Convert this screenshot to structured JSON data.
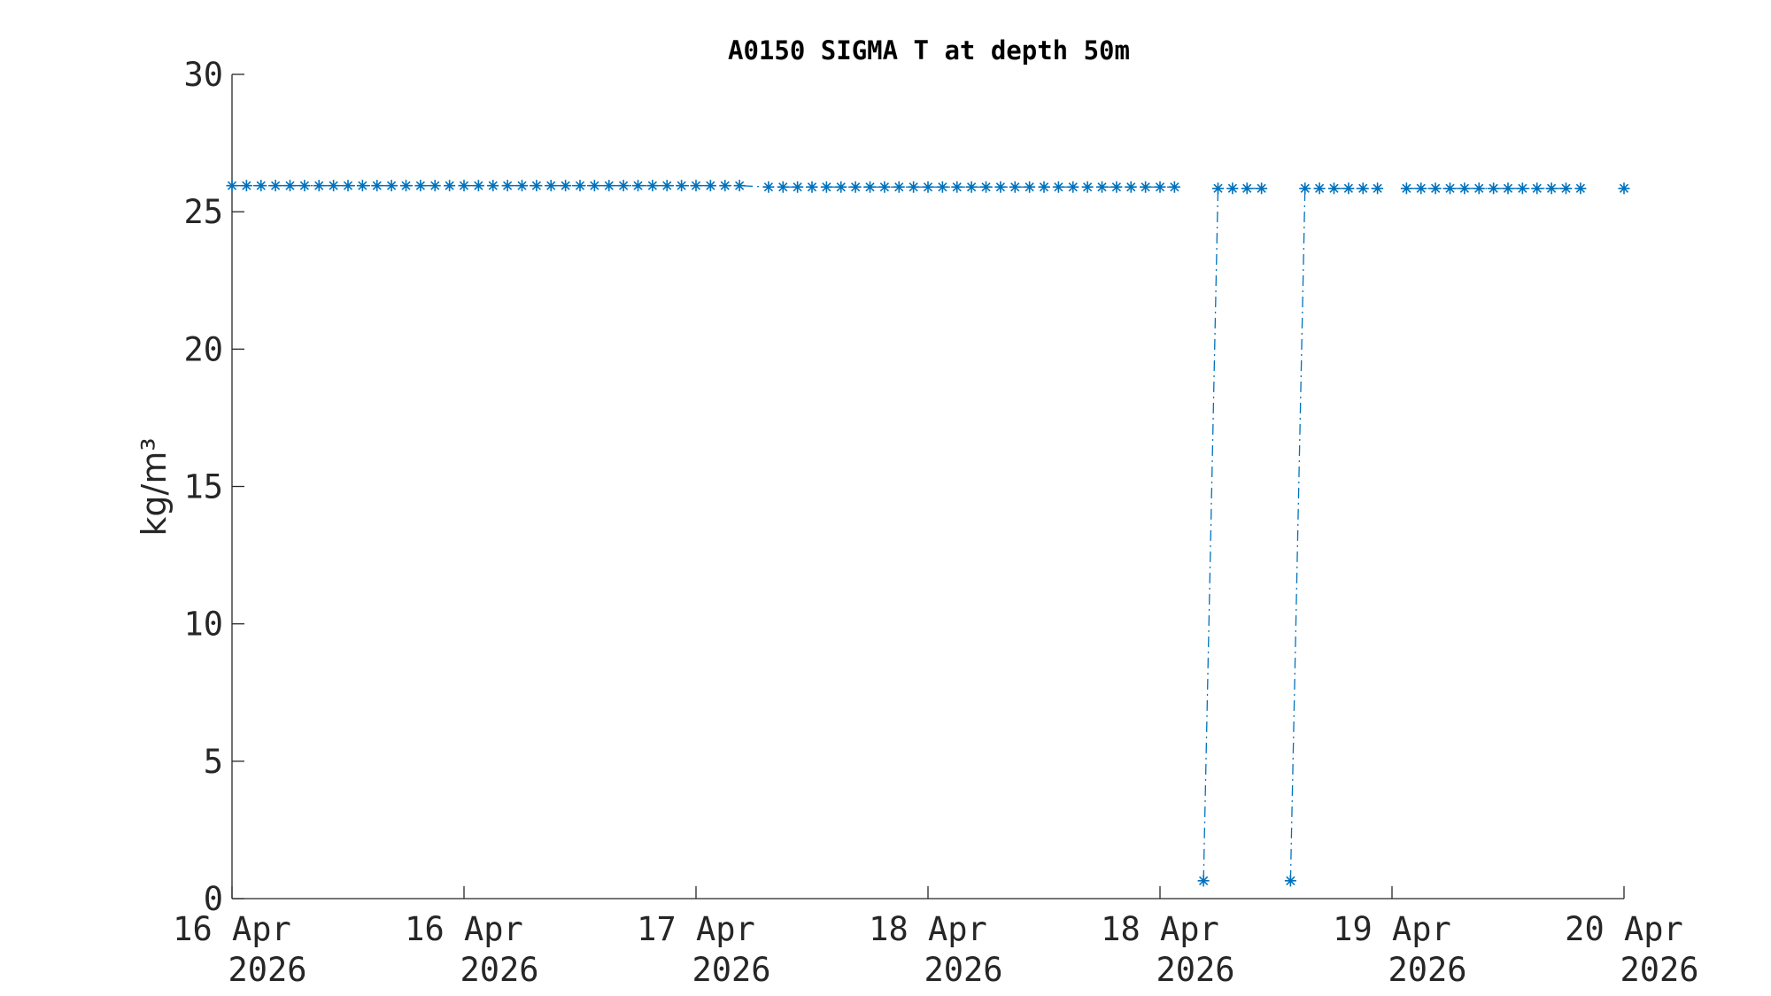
{
  "chart_data": {
    "type": "line",
    "title": "A0150 SIGMA T at depth 50m",
    "y_label": "kg/m³",
    "x": [
      0,
      1,
      2,
      3,
      4,
      5,
      6,
      7,
      8,
      9,
      10,
      11,
      12,
      13,
      14,
      15,
      16,
      17,
      18,
      19,
      20,
      21,
      22,
      23,
      24,
      25,
      26,
      27,
      28,
      29,
      30,
      31,
      32,
      33,
      34,
      35,
      37,
      38,
      39,
      40,
      41,
      42,
      43,
      44,
      45,
      46,
      47,
      48,
      49,
      50,
      51,
      52,
      53,
      54,
      55,
      56,
      57,
      58,
      59,
      60,
      61,
      62,
      63,
      64,
      65,
      66,
      67,
      68,
      69,
      70,
      71,
      72,
      73,
      74,
      75,
      76,
      77,
      78,
      79,
      80,
      81,
      82,
      83,
      84,
      85,
      86,
      87,
      88,
      89,
      90,
      91,
      92,
      93,
      94,
      95,
      96
    ],
    "series": [
      {
        "color": "#0072bd",
        "values": [
          25.95,
          25.95,
          25.95,
          25.95,
          25.95,
          25.95,
          25.95,
          25.95,
          25.95,
          25.95,
          25.95,
          25.95,
          25.95,
          25.95,
          25.95,
          25.95,
          25.95,
          25.95,
          25.95,
          25.95,
          25.95,
          25.95,
          25.95,
          25.95,
          25.95,
          25.95,
          25.95,
          25.95,
          25.95,
          25.95,
          25.95,
          25.95,
          25.95,
          25.95,
          25.95,
          25.95,
          25.9,
          25.9,
          25.9,
          25.9,
          25.9,
          25.9,
          25.9,
          25.9,
          25.9,
          25.9,
          25.9,
          25.9,
          25.9,
          25.9,
          25.9,
          25.9,
          25.9,
          25.9,
          25.9,
          25.9,
          25.9,
          25.9,
          25.9,
          25.9,
          25.9,
          25.9,
          25.9,
          25.9,
          25.9,
          null,
          0.65,
          25.85,
          25.85,
          25.85,
          25.85,
          null,
          0.65,
          25.85,
          25.85,
          25.85,
          25.85,
          25.85,
          25.85,
          null,
          25.85,
          25.85,
          25.85,
          25.85,
          25.85,
          25.85,
          25.85,
          25.85,
          25.85,
          25.85,
          25.85,
          25.85,
          25.85,
          null,
          null,
          25.85
        ]
      }
    ],
    "xlim": [
      0,
      96
    ],
    "xticks": [
      {
        "value": 0,
        "label": "16 Apr\n2026"
      },
      {
        "value": 16,
        "label": "16 Apr\n2026"
      },
      {
        "value": 32,
        "label": "17 Apr\n2026"
      },
      {
        "value": 48,
        "label": "18 Apr\n2026"
      },
      {
        "value": 64,
        "label": "18 Apr\n2026"
      },
      {
        "value": 80,
        "label": "19 Apr\n2026"
      },
      {
        "value": 96,
        "label": "20 Apr\n2026"
      }
    ],
    "ylim": [
      0,
      30
    ],
    "yticks": [
      0,
      5,
      10,
      15,
      20,
      25,
      30
    ]
  }
}
